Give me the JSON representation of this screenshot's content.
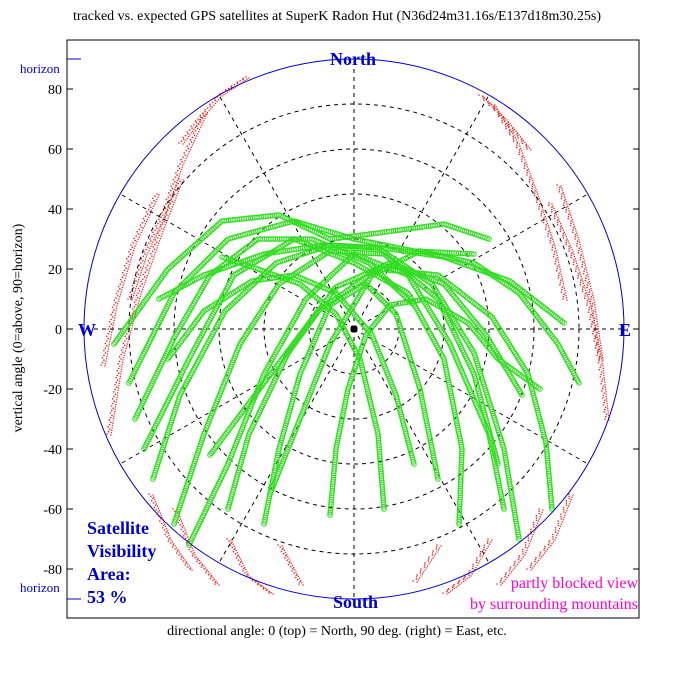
{
  "title": "tracked vs. expected GPS satellites at SuperK Radon Hut (N36d24m31.16s/E137d18m30.25s)",
  "ylabel": "vertical angle (0=above, 90=horizon)",
  "xlabel": "directional angle: 0 (top) = North, 90 deg. (right) = East, etc.",
  "horizon_label": "horizon",
  "directions": {
    "north": "North",
    "south": "South",
    "east": "E",
    "west": "W"
  },
  "visibility": {
    "line1": "Satellite",
    "line2": "Visibility",
    "line3": "Area:",
    "value": "53 %"
  },
  "blocked_note": {
    "line1": "partly blocked view",
    "line2": "by surrounding mountains"
  },
  "colors": {
    "circle": "#0000cc",
    "tracked": "#33dd22",
    "expected": "#ee2222",
    "blocked_text": "#ff00cc"
  },
  "chart_data": {
    "type": "scatter",
    "projection": "polar sky plot",
    "title": "tracked vs. expected GPS satellites at SuperK Radon Hut (N36d24m31.16s/E137d18m30.25s)",
    "ylabel": "vertical angle (0=above, 90=horizon)",
    "xlabel": "directional angle: 0 (top) = North, 90 deg. (right) = East, etc.",
    "ylim": [
      -90,
      90
    ],
    "yticks": [
      80,
      60,
      40,
      20,
      0,
      -20,
      -40,
      -60,
      -80
    ],
    "grid": true,
    "rings": [
      15,
      30,
      45,
      60,
      75
    ],
    "spokes_deg": [
      0,
      30,
      60,
      90,
      120,
      150,
      180,
      210,
      240,
      270,
      300,
      330
    ],
    "series": [],
    "tracks": [
      [
        [
          -67,
          -50
        ],
        [
          -58,
          -22
        ],
        [
          -43,
          6
        ],
        [
          -26,
          22
        ],
        [
          -8,
          28
        ],
        [
          8,
          27
        ],
        [
          26,
          15
        ],
        [
          40,
          -8
        ],
        [
          50,
          -40
        ],
        [
          55,
          -70
        ]
      ],
      [
        [
          -60,
          -65
        ],
        [
          -50,
          -35
        ],
        [
          -38,
          -5
        ],
        [
          -25,
          15
        ],
        [
          -8,
          26
        ],
        [
          10,
          25
        ],
        [
          28,
          10
        ],
        [
          40,
          -15
        ],
        [
          48,
          -45
        ]
      ],
      [
        [
          -55,
          -72
        ],
        [
          -42,
          -45
        ],
        [
          -30,
          -15
        ],
        [
          -16,
          10
        ],
        [
          0,
          25
        ],
        [
          18,
          18
        ],
        [
          32,
          -5
        ],
        [
          45,
          -35
        ],
        [
          50,
          -60
        ]
      ],
      [
        [
          -75,
          -18
        ],
        [
          -60,
          12
        ],
        [
          -42,
          30
        ],
        [
          -20,
          36
        ],
        [
          0,
          30
        ],
        [
          20,
          26
        ],
        [
          40,
          25
        ]
      ],
      [
        [
          -80,
          -5
        ],
        [
          -62,
          20
        ],
        [
          -44,
          36
        ],
        [
          -25,
          38
        ],
        [
          -8,
          30
        ],
        [
          8,
          32
        ],
        [
          30,
          35
        ],
        [
          45,
          30
        ]
      ],
      [
        [
          -70,
          -40
        ],
        [
          -55,
          -10
        ],
        [
          -40,
          18
        ],
        [
          -20,
          30
        ],
        [
          0,
          22
        ],
        [
          18,
          12
        ],
        [
          30,
          -10
        ],
        [
          36,
          -40
        ],
        [
          35,
          -65
        ]
      ],
      [
        [
          -30,
          -65
        ],
        [
          -25,
          -40
        ],
        [
          -18,
          -15
        ],
        [
          -8,
          8
        ],
        [
          4,
          15
        ],
        [
          14,
          5
        ],
        [
          22,
          -20
        ],
        [
          28,
          -50
        ]
      ],
      [
        [
          -8,
          -62
        ],
        [
          -6,
          -40
        ],
        [
          -2,
          -20
        ],
        [
          4,
          -2
        ],
        [
          12,
          8
        ],
        [
          24,
          10
        ],
        [
          38,
          2
        ],
        [
          48,
          -10
        ],
        [
          62,
          -20
        ]
      ],
      [
        [
          10,
          -60
        ],
        [
          8,
          -35
        ],
        [
          2,
          -10
        ],
        [
          -6,
          5
        ],
        [
          -18,
          15
        ],
        [
          -32,
          20
        ],
        [
          -44,
          24
        ]
      ],
      [
        [
          -28,
          -55
        ],
        [
          -18,
          -30
        ],
        [
          -8,
          -5
        ],
        [
          6,
          18
        ],
        [
          22,
          26
        ],
        [
          40,
          22
        ],
        [
          55,
          12
        ],
        [
          68,
          -5
        ],
        [
          75,
          -18
        ]
      ],
      [
        [
          -65,
          10
        ],
        [
          -50,
          18
        ],
        [
          -30,
          25
        ],
        [
          -10,
          28
        ],
        [
          10,
          27
        ],
        [
          30,
          24
        ],
        [
          52,
          16
        ],
        [
          70,
          2
        ]
      ],
      [
        [
          -48,
          -42
        ],
        [
          -30,
          -18
        ],
        [
          -12,
          6
        ],
        [
          8,
          20
        ],
        [
          28,
          18
        ],
        [
          46,
          4
        ],
        [
          58,
          -15
        ],
        [
          64,
          -38
        ],
        [
          66,
          -60
        ]
      ],
      [
        [
          -42,
          -60
        ],
        [
          -35,
          -35
        ],
        [
          -22,
          -8
        ],
        [
          -6,
          14
        ],
        [
          12,
          22
        ],
        [
          30,
          15
        ],
        [
          44,
          -2
        ],
        [
          56,
          -22
        ]
      ],
      [
        [
          -73,
          -30
        ],
        [
          -60,
          -3
        ],
        [
          -48,
          18
        ],
        [
          -32,
          30
        ],
        [
          -14,
          30
        ],
        [
          5,
          22
        ],
        [
          20,
          8
        ]
      ],
      [
        [
          20,
          -45
        ],
        [
          14,
          -22
        ],
        [
          6,
          -2
        ],
        [
          -6,
          12
        ],
        [
          -20,
          18
        ],
        [
          -34,
          16
        ],
        [
          -50,
          6
        ],
        [
          -62,
          -10
        ]
      ]
    ],
    "expected_tracks": [
      [
        [
          -75,
          10
        ],
        [
          -70,
          25
        ],
        [
          -64,
          38
        ],
        [
          -58,
          55
        ],
        [
          -50,
          72
        ]
      ],
      [
        [
          -84,
          -12
        ],
        [
          -80,
          8
        ],
        [
          -74,
          28
        ],
        [
          -66,
          45
        ]
      ],
      [
        [
          -82,
          -35
        ],
        [
          -78,
          -10
        ],
        [
          -72,
          12
        ],
        [
          -65,
          32
        ],
        [
          -58,
          50
        ]
      ],
      [
        [
          -68,
          -55
        ],
        [
          -62,
          -70
        ],
        [
          -55,
          -80
        ]
      ],
      [
        [
          -60,
          -60
        ],
        [
          -54,
          -75
        ],
        [
          -46,
          -85
        ]
      ],
      [
        [
          -42,
          -70
        ],
        [
          -36,
          -82
        ],
        [
          -28,
          -88
        ]
      ],
      [
        [
          -25,
          -72
        ],
        [
          -18,
          -85
        ]
      ],
      [
        [
          70,
          10
        ],
        [
          66,
          28
        ],
        [
          60,
          46
        ],
        [
          54,
          62
        ],
        [
          46,
          75
        ]
      ],
      [
        [
          82,
          -10
        ],
        [
          79,
          10
        ],
        [
          74,
          30
        ],
        [
          68,
          48
        ]
      ],
      [
        [
          84,
          -30
        ],
        [
          82,
          -12
        ],
        [
          78,
          8
        ],
        [
          72,
          26
        ],
        [
          65,
          42
        ]
      ],
      [
        [
          72,
          -55
        ],
        [
          66,
          -70
        ],
        [
          58,
          -80
        ]
      ],
      [
        [
          62,
          -60
        ],
        [
          56,
          -75
        ],
        [
          48,
          -85
        ]
      ],
      [
        [
          45,
          -70
        ],
        [
          38,
          -82
        ],
        [
          30,
          -88
        ]
      ],
      [
        [
          28,
          -72
        ],
        [
          20,
          -84
        ]
      ],
      [
        [
          -58,
          62
        ],
        [
          -52,
          70
        ],
        [
          -45,
          78
        ],
        [
          -36,
          84
        ]
      ],
      [
        [
          58,
          60
        ],
        [
          50,
          70
        ],
        [
          42,
          78
        ]
      ]
    ]
  }
}
